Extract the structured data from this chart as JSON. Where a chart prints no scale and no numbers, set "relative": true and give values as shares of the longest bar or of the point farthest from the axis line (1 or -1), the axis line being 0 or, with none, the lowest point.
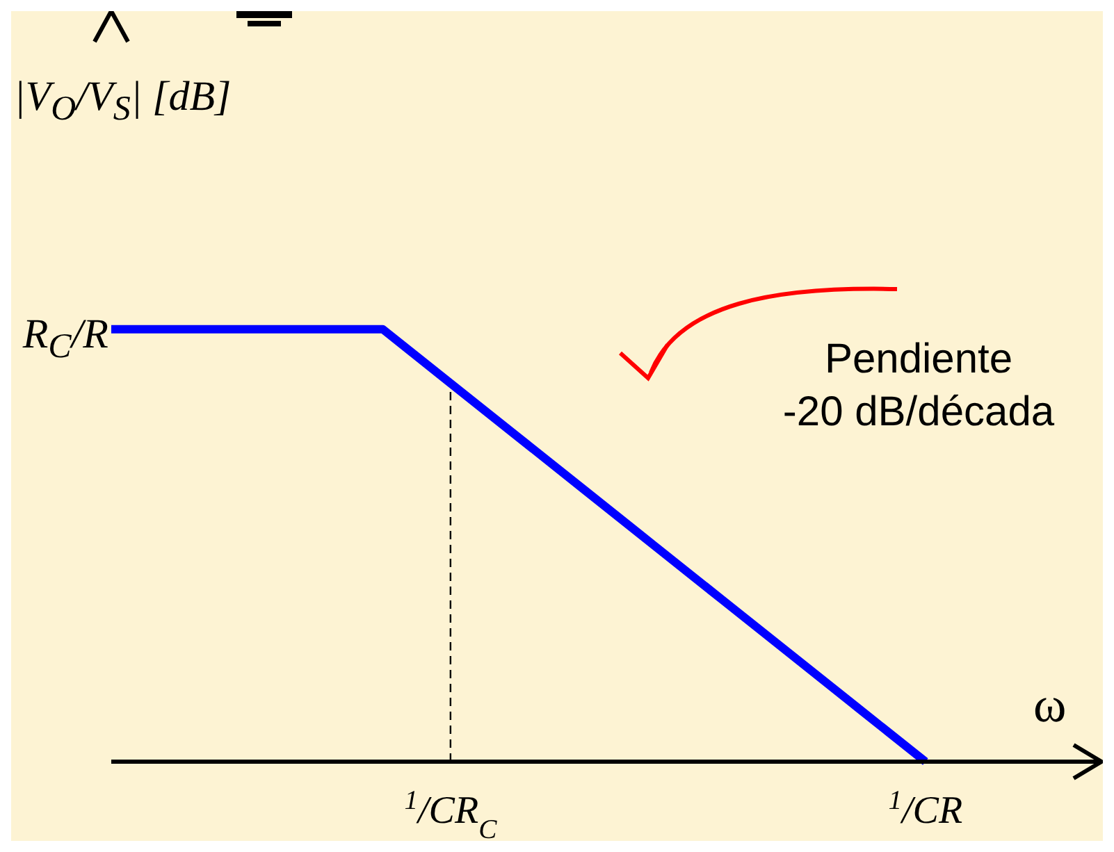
{
  "chart_data": {
    "type": "line",
    "relative": true,
    "xlabel": "ω",
    "ylabel": "|V$_{O}$/V$_{S}$| [dB]",
    "categories": [
      null,
      null,
      null,
      null,
      null,
      "$^{1}$/CR$_{C}$",
      null,
      null,
      null,
      null,
      null,
      null,
      "$^{1}$/CR",
      null,
      null
    ],
    "series": [
      {
        "color": "#0000ff",
        "values": [
          1,
          1,
          1,
          1,
          1,
          0.875,
          0.75,
          0.625,
          0.5,
          0.375,
          0.25,
          0.125,
          0,
          null,
          null
        ]
      }
    ],
    "ref_lines": [
      {
        "axis": "x",
        "value": "$^{1}$/CR$_{C}$",
        "color": "#000000",
        "line_style": "dashed"
      }
    ],
    "annotations": [
      "R$_{C}$/R",
      "Pendiente\n-20 dB/década"
    ],
    "marker": "none",
    "line_style": "solid"
  }
}
